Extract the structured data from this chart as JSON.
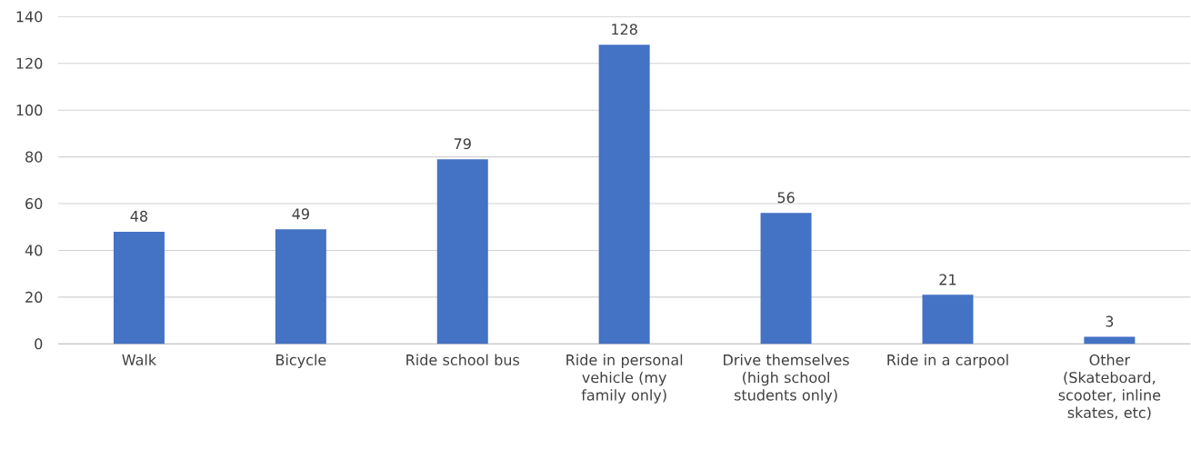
{
  "chart_data": {
    "type": "bar",
    "categories": [
      "Walk",
      "Bicycle",
      "Ride school bus",
      "Ride in personal vehicle (my family only)",
      "Drive themselves (high school students only)",
      "Ride in a carpool",
      "Other (Skateboard, scooter, inline skates, etc)"
    ],
    "values": [
      48,
      49,
      79,
      128,
      56,
      21,
      3
    ],
    "color": "#4472c4",
    "ylim": [
      0,
      140
    ],
    "yticks": [
      0,
      20,
      40,
      60,
      80,
      100,
      120,
      140
    ],
    "grid": "y",
    "data_labels": true
  }
}
